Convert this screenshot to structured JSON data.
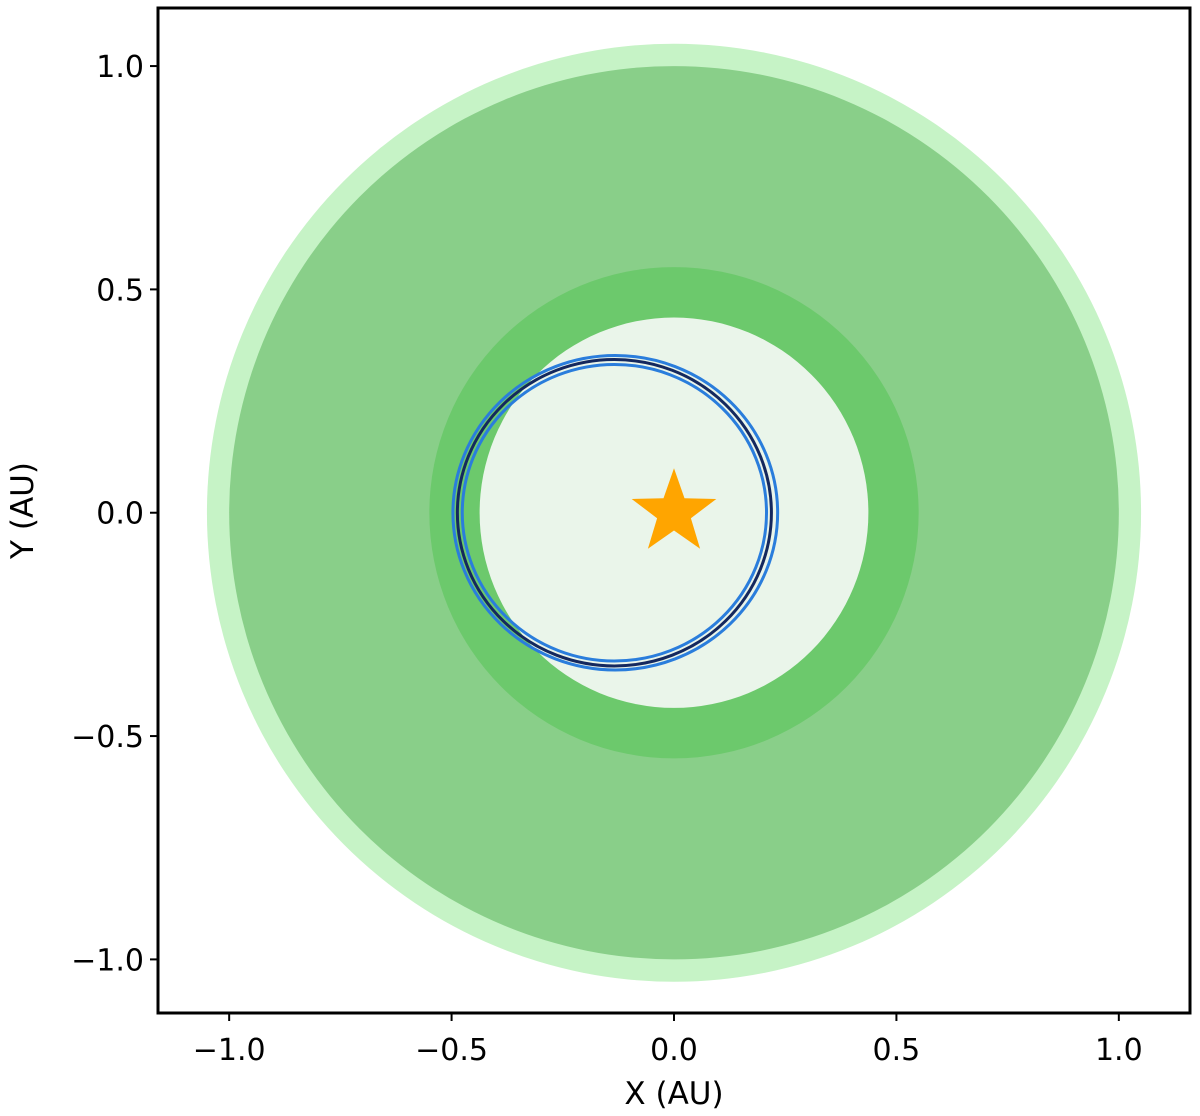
{
  "chart_data": {
    "type": "scatter",
    "xlabel": "X (AU)",
    "ylabel": "Y (AU)",
    "xlim": [
      -1.16,
      1.16
    ],
    "ylim": [
      -1.12,
      1.13
    ],
    "xticks": [
      -1.0,
      -0.5,
      0.0,
      0.5,
      1.0
    ],
    "yticks": [
      -1.0,
      -0.5,
      0.0,
      0.5,
      1.0
    ],
    "xtick_labels": [
      "−1.0",
      "−0.5",
      "0.0",
      "0.5",
      "1.0"
    ],
    "ytick_labels": [
      "−1.0",
      "−0.5",
      "0.0",
      "0.5",
      "1.0"
    ],
    "grid": false,
    "zones": [
      {
        "kind": "disk",
        "radius": 1.05,
        "color": "#c6f3c6"
      },
      {
        "kind": "disk",
        "radius": 1.0,
        "color": "#89cf89"
      },
      {
        "kind": "disk",
        "radius": 0.55,
        "color": "#6cc96c"
      },
      {
        "kind": "disk",
        "radius": 0.437,
        "color": "#eaf5ea"
      }
    ],
    "orbits": [
      {
        "center": [
          -0.132,
          0.0
        ],
        "semi_axes": [
          0.365,
          0.352
        ],
        "color": "#2a7ddc",
        "width": 3
      },
      {
        "center": [
          -0.134,
          0.0
        ],
        "semi_axes": [
          0.353,
          0.343
        ],
        "color": "#14285e",
        "width": 3
      },
      {
        "center": [
          -0.134,
          0.0
        ],
        "semi_axes": [
          0.342,
          0.332
        ],
        "color": "#2a7ddc",
        "width": 3
      }
    ],
    "star": {
      "x": 0.0,
      "y": 0.0,
      "size": 0.1,
      "color": "#ffa500"
    }
  }
}
